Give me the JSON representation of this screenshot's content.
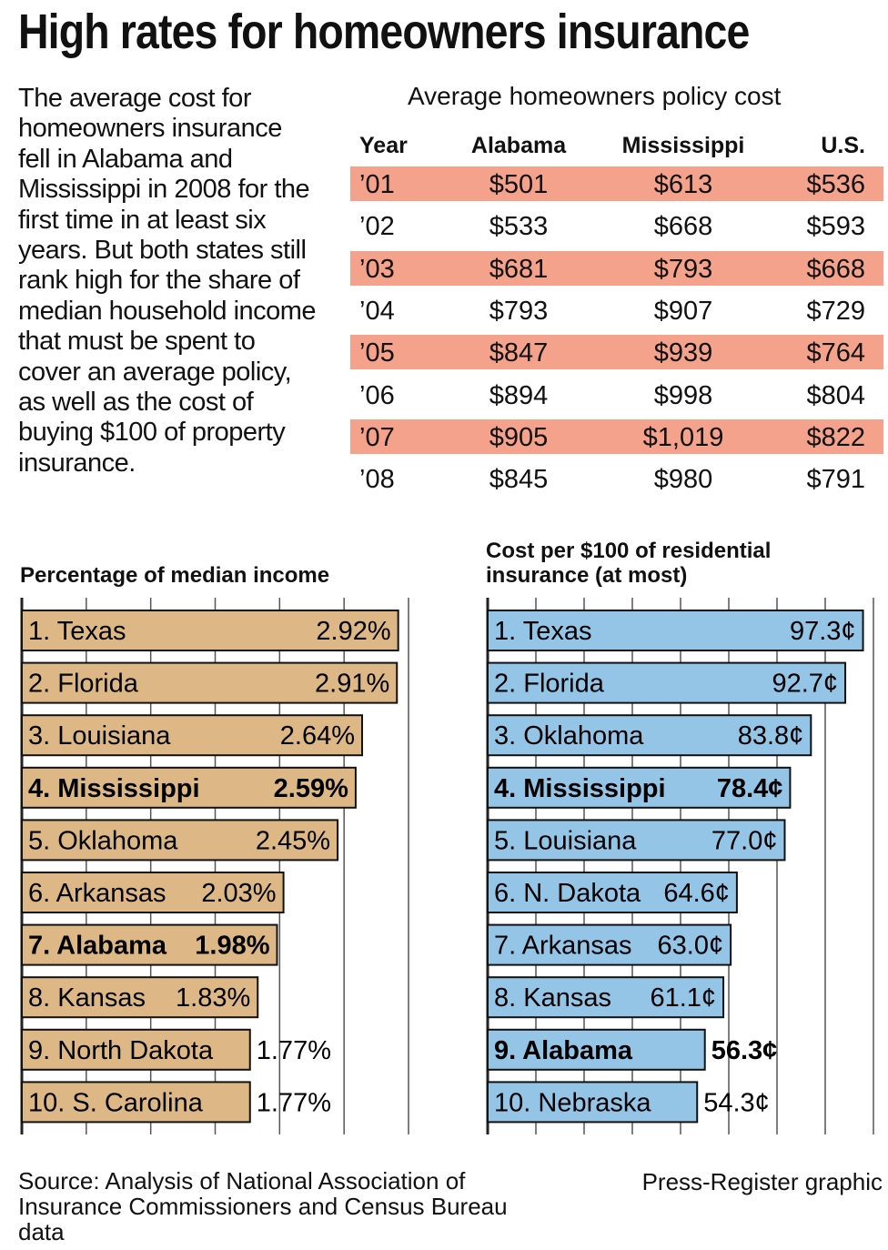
{
  "title": "High rates for homeowners insurance",
  "intro": "The average cost for homeowners insurance fell in Alabama and Mississippi in 2008 for the first time in at least six years. But both states still rank high for the share of median household income that must be spent to cover an average policy, as well as the cost of buying $100 of property insurance.",
  "source": "Source: Analysis of National Association of Insurance Commissioners and Census Bureau data",
  "credit": "Press-Register graphic",
  "colors": {
    "row_shade": "#f4a28c",
    "income_bar": "#ddb886",
    "cost_bar": "#94c4e6",
    "grid": "#555555"
  },
  "chart_data": [
    {
      "type": "table",
      "title": "Average homeowners policy cost",
      "columns": [
        "Year",
        "Alabama",
        "Mississippi",
        "U.S."
      ],
      "rows": [
        [
          "’01",
          "$501",
          "$613",
          "$536"
        ],
        [
          "’02",
          "$533",
          "$668",
          "$593"
        ],
        [
          "’03",
          "$681",
          "$793",
          "$668"
        ],
        [
          "’04",
          "$793",
          "$907",
          "$729"
        ],
        [
          "’05",
          "$847",
          "$939",
          "$764"
        ],
        [
          "’06",
          "$894",
          "$998",
          "$804"
        ],
        [
          "’07",
          "$905",
          "$1,019",
          "$822"
        ],
        [
          "’08",
          "$845",
          "$980",
          "$791"
        ]
      ]
    },
    {
      "type": "bar",
      "orientation": "horizontal",
      "title": "Percentage of median income",
      "xlim": [
        0,
        3.0
      ],
      "bars": [
        {
          "label": "1. Texas",
          "value": 2.92,
          "display": "2.92%",
          "bold": false
        },
        {
          "label": "2. Florida",
          "value": 2.91,
          "display": "2.91%",
          "bold": false
        },
        {
          "label": "3. Louisiana",
          "value": 2.64,
          "display": "2.64%",
          "bold": false
        },
        {
          "label": "4. Mississippi",
          "value": 2.59,
          "display": "2.59%",
          "bold": true
        },
        {
          "label": "5. Oklahoma",
          "value": 2.45,
          "display": "2.45%",
          "bold": false
        },
        {
          "label": "6. Arkansas",
          "value": 2.03,
          "display": "2.03%",
          "bold": false
        },
        {
          "label": "7. Alabama",
          "value": 1.98,
          "display": "1.98%",
          "bold": true
        },
        {
          "label": "8. Kansas",
          "value": 1.83,
          "display": "1.83%",
          "bold": false
        },
        {
          "label": "9. North Dakota",
          "value": 1.77,
          "display": "1.77%",
          "bold": false
        },
        {
          "label": "10. S. Carolina",
          "value": 1.77,
          "display": "1.77%",
          "bold": false
        }
      ]
    },
    {
      "type": "bar",
      "orientation": "horizontal",
      "title": "Cost per $100 of residential insurance (at most)",
      "xlim": [
        0,
        100
      ],
      "bars": [
        {
          "label": "1. Texas",
          "value": 97.3,
          "display": "97.3¢",
          "bold": false
        },
        {
          "label": "2. Florida",
          "value": 92.7,
          "display": "92.7¢",
          "bold": false
        },
        {
          "label": "3. Oklahoma",
          "value": 83.8,
          "display": "83.8¢",
          "bold": false
        },
        {
          "label": "4. Mississippi",
          "value": 78.4,
          "display": "78.4¢",
          "bold": true
        },
        {
          "label": "5. Louisiana",
          "value": 77.0,
          "display": "77.0¢",
          "bold": false
        },
        {
          "label": "6. N. Dakota",
          "value": 64.6,
          "display": "64.6¢",
          "bold": false
        },
        {
          "label": "7. Arkansas",
          "value": 63.0,
          "display": "63.0¢",
          "bold": false
        },
        {
          "label": "8. Kansas",
          "value": 61.1,
          "display": "61.1¢",
          "bold": false
        },
        {
          "label": "9. Alabama",
          "value": 56.3,
          "display": "56.3¢",
          "bold": true
        },
        {
          "label": "10. Nebraska",
          "value": 54.3,
          "display": "54.3¢",
          "bold": false
        }
      ]
    }
  ]
}
